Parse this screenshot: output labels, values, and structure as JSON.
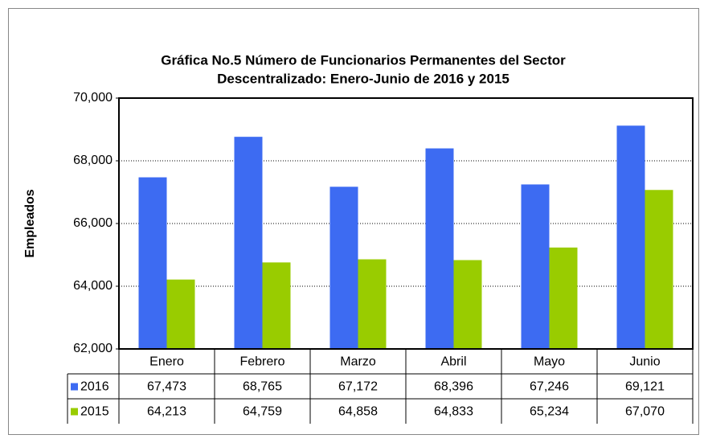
{
  "chart_data": {
    "type": "bar",
    "title": [
      "Gráfica No.5 Número de Funcionarios Permanentes del Sector",
      "Descentralizado: Enero-Junio de 2016 y 2015"
    ],
    "y_label": "Empleados",
    "categories": [
      "Enero",
      "Febrero",
      "Marzo",
      "Abril",
      "Mayo",
      "Junio"
    ],
    "series": [
      {
        "name": "2016",
        "color": "#3d6bf2",
        "values": [
          67473,
          68765,
          67172,
          68396,
          67246,
          69121
        ],
        "value_labels": [
          "67,473",
          "68,765",
          "67,172",
          "68,396",
          "67,246",
          "69,121"
        ]
      },
      {
        "name": "2015",
        "color": "#99cc00",
        "values": [
          64213,
          64759,
          64858,
          64833,
          65234,
          67070
        ],
        "value_labels": [
          "64,213",
          "64,759",
          "64,858",
          "64,833",
          "65,234",
          "67,070"
        ]
      }
    ],
    "ylim": [
      62000,
      70000
    ],
    "yticks": [
      {
        "value": 62000,
        "label": "62,000"
      },
      {
        "value": 64000,
        "label": "64,000"
      },
      {
        "value": 66000,
        "label": "66,000"
      },
      {
        "value": 68000,
        "label": "68,000"
      },
      {
        "value": 70000,
        "label": "70,000"
      }
    ],
    "grid": true
  }
}
